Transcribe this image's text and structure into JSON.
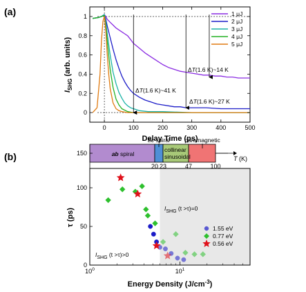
{
  "panel_labels": [
    "(a)",
    "(b)"
  ],
  "chart_data": [
    {
      "type": "line",
      "panel": "(a)",
      "xlabel": "Delay Time (ps)",
      "ylabel_main": "I",
      "ylabel_sub": "SHG",
      "ylabel_rest": " (arb. units)",
      "xlim": [
        -50,
        500
      ],
      "ylim": [
        -0.1,
        1.1
      ],
      "xticks": [
        0,
        100,
        200,
        300,
        400,
        500
      ],
      "xtick_labels": [
        "0",
        "100",
        "200",
        "300",
        "400",
        "500"
      ],
      "yticks": [
        0,
        0.2,
        0.4,
        0.6,
        0.8,
        1
      ],
      "ytick_labels": [
        "0",
        "0.2",
        "0.4",
        "0.6",
        "0.8",
        "1"
      ],
      "legend_position": "top-right",
      "reference_lines": {
        "y": [
          1,
          0
        ],
        "x": [
          0
        ]
      },
      "series": [
        {
          "name": "1 μJ",
          "color": "#8a2be2",
          "x": [
            -40,
            -20,
            -10,
            0,
            5,
            10,
            20,
            30,
            40,
            50,
            60,
            70,
            80,
            90,
            100,
            120,
            140,
            160,
            180,
            200,
            220,
            240,
            260,
            280,
            300,
            320,
            340,
            360,
            380,
            400,
            420,
            440,
            460,
            480,
            500
          ],
          "y": [
            0.98,
            0.99,
            1.0,
            1.02,
            1.0,
            0.97,
            0.94,
            0.91,
            0.88,
            0.86,
            0.84,
            0.82,
            0.8,
            0.76,
            0.72,
            0.67,
            0.62,
            0.58,
            0.54,
            0.5,
            0.47,
            0.45,
            0.43,
            0.42,
            0.41,
            0.4,
            0.39,
            0.39,
            0.38,
            0.38,
            0.37,
            0.37,
            0.36,
            0.36,
            0.36
          ]
        },
        {
          "name": "2 μJ",
          "color": "#1c1cc8",
          "x": [
            -40,
            -20,
            -10,
            0,
            5,
            10,
            20,
            30,
            40,
            50,
            60,
            70,
            80,
            90,
            100,
            120,
            140,
            160,
            180,
            200,
            220,
            240,
            260,
            280,
            300,
            350,
            400,
            450,
            500
          ],
          "y": [
            0.98,
            0.99,
            1.0,
            1.02,
            0.97,
            0.9,
            0.78,
            0.66,
            0.55,
            0.46,
            0.38,
            0.32,
            0.27,
            0.23,
            0.2,
            0.16,
            0.13,
            0.11,
            0.09,
            0.08,
            0.07,
            0.06,
            0.06,
            0.05,
            0.05,
            0.05,
            0.04,
            0.04,
            0.04
          ]
        },
        {
          "name": "3 μJ",
          "color": "#1ab3a6",
          "x": [
            -40,
            -20,
            -10,
            0,
            5,
            10,
            20,
            30,
            40,
            50,
            60,
            70,
            80,
            90,
            100,
            120,
            150,
            200,
            300,
            400,
            500
          ],
          "y": [
            0.98,
            0.99,
            1.0,
            1.02,
            0.94,
            0.82,
            0.6,
            0.42,
            0.3,
            0.21,
            0.15,
            0.1,
            0.07,
            0.05,
            0.04,
            0.02,
            0.01,
            0.01,
            0.0,
            0.0,
            0.0
          ]
        },
        {
          "name": "4 μJ",
          "color": "#22b022",
          "x": [
            -40,
            -20,
            -10,
            0,
            5,
            10,
            20,
            30,
            40,
            50,
            60,
            80,
            100,
            150,
            200,
            300,
            400,
            500
          ],
          "y": [
            0.98,
            0.99,
            1.0,
            1.01,
            0.9,
            0.74,
            0.45,
            0.26,
            0.14,
            0.08,
            0.04,
            0.01,
            0.0,
            0.0,
            0.0,
            0.0,
            0.0,
            0.0
          ]
        },
        {
          "name": "5 μJ",
          "color": "#e07a10",
          "x": [
            -40,
            -25,
            -15,
            -10,
            -5,
            0,
            5,
            10,
            15,
            20,
            30,
            40,
            50,
            60,
            80,
            100,
            150,
            200,
            300,
            400,
            500
          ],
          "y": [
            0.0,
            0.05,
            0.4,
            0.75,
            0.95,
            1.0,
            0.85,
            0.6,
            0.4,
            0.25,
            0.1,
            0.04,
            0.02,
            0.01,
            0.0,
            0.0,
            0.0,
            0.0,
            0.0,
            0.0,
            0.0
          ]
        }
      ],
      "annotations": [
        {
          "text": "ΔT(1.6 K)~14 K",
          "target_x": 360
        },
        {
          "text": "ΔT(1.6 K)~41 K",
          "target_x": 100
        },
        {
          "text": "ΔT(1.6 K)~27 K",
          "target_x": 280
        }
      ]
    },
    {
      "type": "scatter",
      "panel": "(b)",
      "xlabel": "Energy Density (J/cm",
      "xlabel_sup": "-3",
      "xlabel_end": ")",
      "ylabel": "τ (ps)",
      "xscale": "log",
      "xlim": [
        1,
        60
      ],
      "ylim": [
        0,
        125
      ],
      "xticks": [
        1,
        10
      ],
      "xtick_labels_main": [
        "10",
        "10"
      ],
      "xtick_labels_sup": [
        "0",
        "1"
      ],
      "yticks": [
        0,
        50,
        100,
        150
      ],
      "ytick_labels": [
        "0",
        "50",
        "100",
        "150"
      ],
      "shaded_region_x_from": 6.0,
      "region_label_right": {
        "main": "I",
        "sub": "SHG",
        "rest": " (t >τ)=0"
      },
      "region_label_left": {
        "main": "I",
        "sub": "SHG",
        "rest": " (t >τ)>0"
      },
      "legend_position": "bottom-right",
      "series": [
        {
          "name": "1.55 eV",
          "color": "#1c1cc8",
          "marker": "circle",
          "x": [
            4.7,
            5.1,
            5.5,
            6.0,
            6.9,
            8.0,
            9.4,
            11.0
          ],
          "y": [
            50,
            40,
            30,
            23,
            21,
            15,
            9,
            7
          ]
        },
        {
          "name": "0.77 eV",
          "color": "#2ec02e",
          "marker": "diamond",
          "x": [
            1.6,
            2.3,
            3.2,
            3.8,
            4.2,
            4.4,
            5.3,
            6.5,
            9.0,
            11.5,
            14.5,
            18.0
          ],
          "y": [
            84,
            98,
            95,
            102,
            72,
            64,
            54,
            30,
            40,
            16,
            14,
            14
          ]
        },
        {
          "name": "0.56 eV",
          "color": "#e0101a",
          "marker": "star",
          "x": [
            2.2,
            3.4,
            5.5,
            7.3
          ],
          "y": [
            113,
            92,
            25,
            12
          ]
        }
      ],
      "phase_bar": {
        "y_level": 150,
        "segments": [
          {
            "label": "ab spiral",
            "color": "#b28bcf",
            "t_start": 0,
            "t_end": 20
          },
          {
            "label": "bc spiral",
            "color": "#4f8fd6",
            "t_start": 20,
            "t_end": 23
          },
          {
            "label": "collinear sinusoidal",
            "color": "#a8c978",
            "t_start": 23,
            "t_end": 47
          },
          {
            "label": "paramagnetic",
            "color": "#f07474",
            "t_start": 47,
            "t_end": 100
          }
        ],
        "boundary_labels": [
          "20",
          "23",
          "47",
          "100"
        ],
        "t_axis_label": "T",
        "t_axis_unit": " (K)"
      }
    }
  ]
}
